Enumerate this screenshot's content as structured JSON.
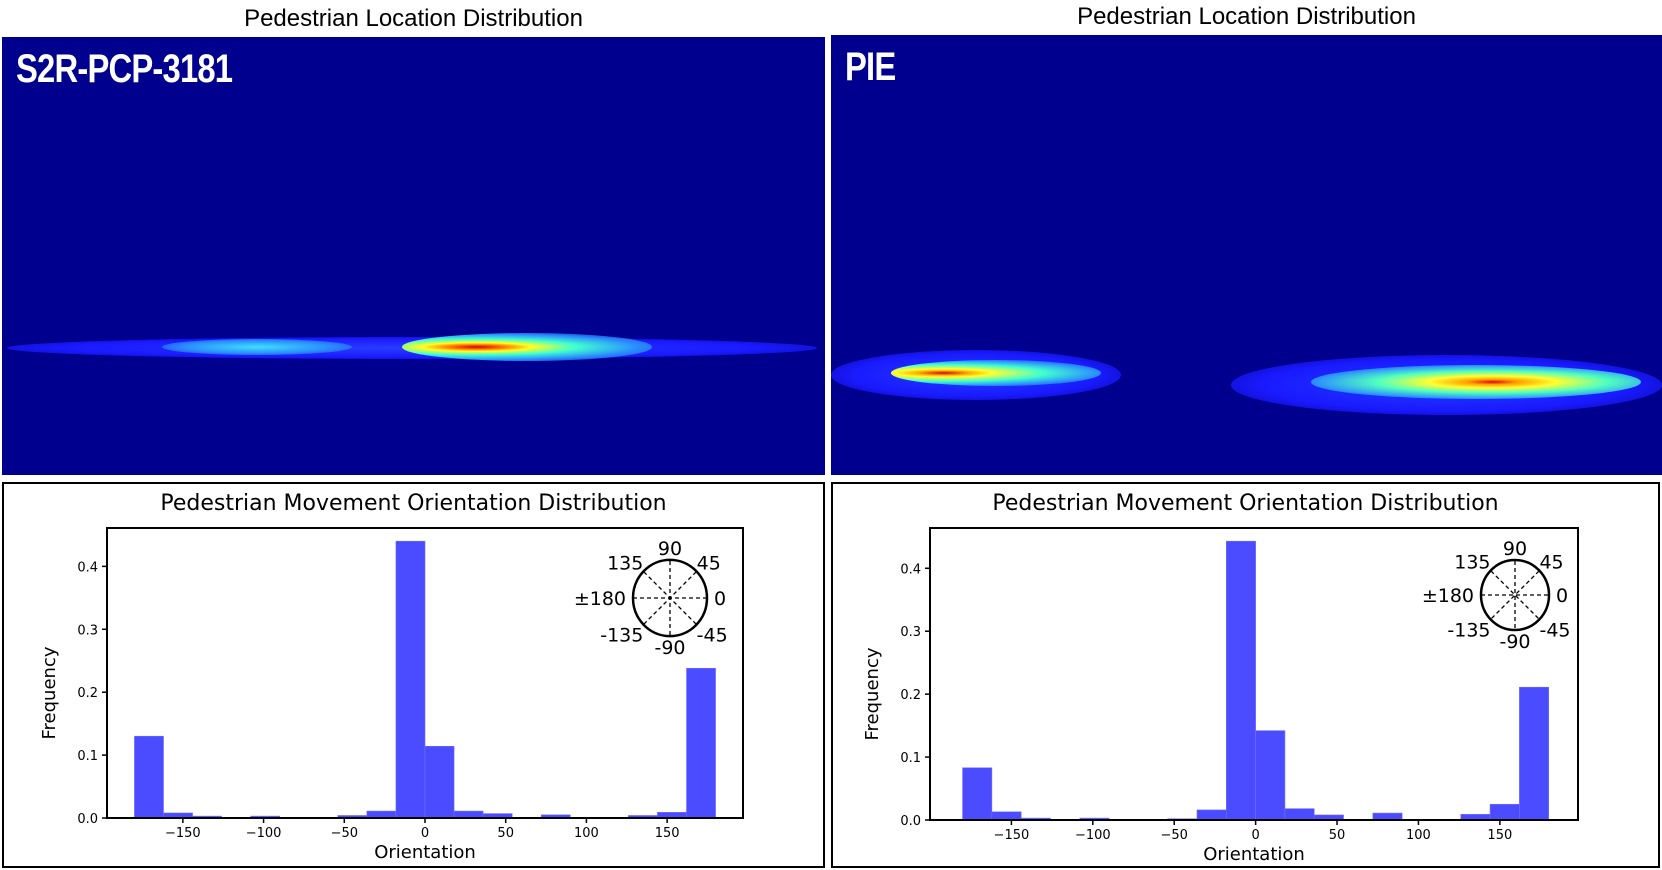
{
  "heatmaps": [
    {
      "title": "Pedestrian Location Distribution",
      "dataset_label": "S2R-PCP-3181"
    },
    {
      "title": "Pedestrian Location Distribution",
      "dataset_label": "PIE"
    }
  ],
  "colors": {
    "background": "#00008f",
    "bar": "#4b4bff"
  },
  "chart_data": [
    {
      "type": "bar",
      "title": "Pedestrian Movement Orientation Distribution",
      "xlabel": "Orientation",
      "ylabel": "Frequency",
      "xlim": [
        -197,
        197
      ],
      "ylim": [
        0,
        0.461
      ],
      "bin_edges_start": -180,
      "bin_width": 18,
      "values": [
        0.13,
        0.008,
        0.003,
        0,
        0.003,
        0,
        0,
        0.004,
        0.011,
        0.44,
        0.114,
        0.011,
        0.007,
        0,
        0.005,
        0,
        0,
        0.004,
        0.009,
        0.238
      ],
      "xticks": [
        -150,
        -100,
        -50,
        0,
        50,
        100,
        150
      ],
      "xtick_labels": [
        "−150",
        "−100",
        "−50",
        "0",
        "50",
        "100",
        "150"
      ],
      "yticks": [
        0.0,
        0.1,
        0.2,
        0.3,
        0.4
      ],
      "ytick_labels": [
        "0.0",
        "0.1",
        "0.2",
        "0.3",
        "0.4"
      ],
      "compass_labels": {
        "n": "90",
        "ne": "45",
        "e": "0",
        "se": "-45",
        "s": "-90",
        "sw": "-135",
        "w": "±180",
        "nw": "135"
      }
    },
    {
      "type": "bar",
      "title": "Pedestrian Movement Orientation Distribution",
      "xlabel": "Orientation",
      "ylabel": "Frequency",
      "xlim": [
        -200,
        198
      ],
      "ylim": [
        0,
        0.464
      ],
      "bin_edges_start": -180,
      "bin_width": 18,
      "values": [
        0.083,
        0.013,
        0.003,
        0,
        0.003,
        0,
        0,
        0.002,
        0.016,
        0.443,
        0.142,
        0.018,
        0.008,
        0,
        0.011,
        0,
        0,
        0.009,
        0.025,
        0.211
      ],
      "xticks": [
        -150,
        -100,
        -50,
        0,
        50,
        100,
        150
      ],
      "xtick_labels": [
        "−150",
        "−100",
        "−50",
        "0",
        "50",
        "100",
        "150"
      ],
      "yticks": [
        0.0,
        0.1,
        0.2,
        0.3,
        0.4
      ],
      "ytick_labels": [
        "0.0",
        "0.1",
        "0.2",
        "0.3",
        "0.4"
      ],
      "compass_labels": {
        "n": "90",
        "ne": "45",
        "e": "0",
        "se": "-45",
        "s": "-90",
        "sw": "-135",
        "w": "±180",
        "nw": "135"
      }
    }
  ]
}
